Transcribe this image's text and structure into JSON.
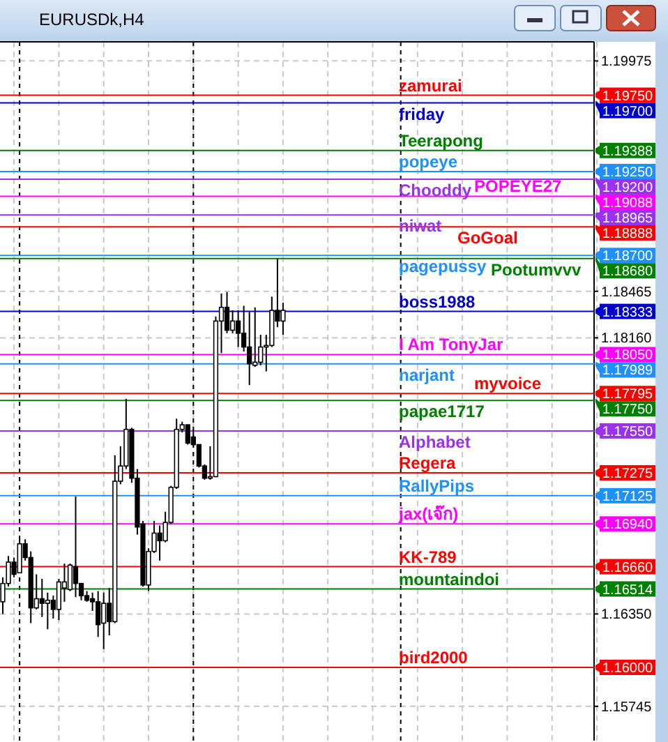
{
  "chart_data": {
    "type": "candlestick",
    "title": "EURUSDk,H4",
    "categories": [
      null,
      null,
      null,
      null,
      null,
      null,
      null,
      null,
      null,
      null,
      null,
      null,
      null,
      null,
      null,
      null,
      null,
      null,
      null,
      null,
      null,
      null,
      null,
      null,
      null,
      null,
      null,
      null,
      null,
      null,
      null,
      null,
      null,
      null,
      null,
      null,
      null,
      null,
      null,
      null,
      null,
      null,
      null,
      null,
      null,
      null,
      null,
      null,
      null,
      null,
      null,
      null,
      null,
      null,
      null,
      null,
      null,
      null,
      null,
      null,
      null,
      null,
      null,
      null,
      null,
      null,
      null,
      null,
      null,
      null,
      null,
      null,
      null,
      null,
      null,
      null,
      null,
      null,
      null,
      null,
      null,
      null,
      null,
      null,
      null,
      null,
      null,
      null,
      null,
      null,
      null,
      null,
      null,
      null,
      null,
      null,
      null,
      null,
      null,
      null,
      null,
      null,
      null,
      null,
      null,
      null
    ],
    "ohlc": [
      [
        1.1643,
        1.1659,
        1.1635,
        1.1655
      ],
      [
        1.1655,
        1.1673,
        1.1653,
        1.1669
      ],
      [
        1.1669,
        1.1672,
        1.1659,
        1.1661
      ],
      [
        1.1662,
        1.1684,
        1.1662,
        1.1681
      ],
      [
        1.1681,
        1.1684,
        1.167,
        1.1672
      ],
      [
        1.1672,
        1.1676,
        1.1629,
        1.1639
      ],
      [
        1.1639,
        1.1661,
        1.1638,
        1.1645
      ],
      [
        1.1645,
        1.1658,
        1.1633,
        1.1642
      ],
      [
        1.1642,
        1.1649,
        1.1625,
        1.1644
      ],
      [
        1.1644,
        1.1647,
        1.1632,
        1.1638
      ],
      [
        1.1638,
        1.1658,
        1.1631,
        1.1656
      ],
      [
        1.1652,
        1.1668,
        1.1643,
        1.1656
      ],
      [
        1.1651,
        1.1668,
        1.165,
        1.1667
      ],
      [
        1.1666,
        1.1712,
        1.1646,
        1.1655
      ],
      [
        1.1655,
        1.1655,
        1.1644,
        1.1647
      ],
      [
        1.1647,
        1.165,
        1.1643,
        1.1644
      ],
      [
        1.1645,
        1.1649,
        1.1637,
        1.1643
      ],
      [
        1.1643,
        1.165,
        1.162,
        1.1628
      ],
      [
        1.1629,
        1.1649,
        1.1612,
        1.1642
      ],
      [
        1.1642,
        1.1652,
        1.1621,
        1.163
      ],
      [
        1.163,
        1.1739,
        1.1629,
        1.1722
      ],
      [
        1.1722,
        1.1745,
        1.172,
        1.1732
      ],
      [
        1.1732,
        1.1776,
        1.173,
        1.1756
      ],
      [
        1.1756,
        1.1757,
        1.1721,
        1.1724
      ],
      [
        1.1724,
        1.173,
        1.1687,
        1.1692
      ],
      [
        1.1694,
        1.1696,
        1.1653,
        1.1654
      ],
      [
        1.1654,
        1.1678,
        1.165,
        1.1676
      ],
      [
        1.1676,
        1.1696,
        1.1675,
        1.1688
      ],
      [
        1.1688,
        1.1693,
        1.167,
        1.1683
      ],
      [
        1.1683,
        1.1702,
        1.1682,
        1.1695
      ],
      [
        1.1695,
        1.1719,
        1.1694,
        1.1718
      ],
      [
        1.1718,
        1.1763,
        1.1717,
        1.1756
      ],
      [
        1.1756,
        1.1761,
        1.1754,
        1.1759
      ],
      [
        1.1759,
        1.1759,
        1.1746,
        1.1747
      ],
      [
        1.1751,
        1.1756,
        1.1745,
        1.1746
      ],
      [
        1.1746,
        1.1746,
        1.1731,
        1.1732
      ],
      [
        1.1732,
        1.1733,
        1.1723,
        1.1724
      ],
      [
        1.1724,
        1.1745,
        1.1723,
        1.1725
      ],
      [
        1.1725,
        1.183,
        1.1725,
        1.1827
      ],
      [
        1.1827,
        1.1845,
        1.1806,
        1.1836
      ],
      [
        1.1836,
        1.1846,
        1.1819,
        1.1821
      ],
      [
        1.1821,
        1.1834,
        1.1819,
        1.1827
      ],
      [
        1.1827,
        1.1834,
        1.181,
        1.1819
      ],
      [
        1.1819,
        1.1837,
        1.1807,
        1.181
      ],
      [
        1.181,
        1.1833,
        1.1785,
        1.1799
      ],
      [
        1.1798,
        1.1836,
        1.1797,
        1.18
      ],
      [
        1.18,
        1.1818,
        1.1798,
        1.181
      ],
      [
        1.181,
        1.1818,
        1.1794,
        1.1811
      ],
      [
        1.1811,
        1.1843,
        1.181,
        1.1834
      ],
      [
        1.1834,
        1.1868,
        1.1823,
        1.1827
      ],
      [
        1.1827,
        1.1839,
        1.1818,
        1.1834
      ],
      null,
      null,
      null,
      null,
      null,
      null,
      null,
      null,
      null,
      null,
      null,
      null,
      null,
      null,
      null,
      null,
      null,
      null,
      null,
      null,
      null,
      null,
      null,
      null,
      null,
      null,
      null,
      null,
      null,
      null,
      null,
      null,
      null,
      null,
      null,
      null,
      null,
      null,
      null,
      null,
      null,
      null,
      null,
      null,
      null,
      null,
      null,
      null,
      null,
      null,
      null,
      null,
      null,
      null,
      null
    ],
    "ylim": [
      1.1552,
      1.201
    ],
    "yticks": [
      1.19975,
      1.18465,
      {
        "value": 1.1816,
        "label": "1.18160"
      },
      {
        "value": 1.1635,
        "label": "1.16350"
      },
      1.15745
    ],
    "grid": true,
    "ref_lines": [
      {
        "axis": "y",
        "value": 1.1975,
        "label": "1.19750",
        "color": "#ff0000"
      },
      {
        "axis": "y",
        "value": 1.197,
        "label": "1.19700",
        "color": "#0000cd"
      },
      {
        "axis": "y",
        "value": 1.19388,
        "label": "1.19388",
        "color": "#008000"
      },
      {
        "axis": "y",
        "value": 1.1925,
        "label": "1.19250",
        "color": "#1e90ff"
      },
      {
        "axis": "y",
        "value": 1.192,
        "label": "1.19200",
        "color": "#9932f0"
      },
      {
        "axis": "y",
        "value": 1.19088,
        "label": "1.19088",
        "color": "#ff00ff"
      },
      {
        "axis": "y",
        "value": 1.18965,
        "label": "1.18965",
        "color": "#9932f0"
      },
      {
        "axis": "y",
        "value": 1.18888,
        "label": "1.18888",
        "color": "#ff0000"
      },
      {
        "axis": "y",
        "value": 1.187,
        "label": "1.18700",
        "color": "#1e90ff"
      },
      {
        "axis": "y",
        "value": 1.1868,
        "label": "1.18680",
        "color": "#008000"
      },
      {
        "axis": "y",
        "value": 1.18333,
        "label": "1.18333",
        "color": "#0000cd"
      },
      {
        "axis": "y",
        "value": 1.1805,
        "label": "1.18050",
        "color": "#ff00ff"
      },
      {
        "axis": "y",
        "value": 1.17989,
        "label": "1.17989",
        "color": "#1e90ff"
      },
      {
        "axis": "y",
        "value": 1.17795,
        "label": "1.17795",
        "color": "#ff0000"
      },
      {
        "axis": "y",
        "value": 1.1775,
        "label": "1.17750",
        "color": "#008000"
      },
      {
        "axis": "y",
        "value": 1.1755,
        "label": "1.17550",
        "color": "#9932f0"
      },
      {
        "axis": "y",
        "value": 1.17275,
        "label": "1.17275",
        "color": "#ff0000"
      },
      {
        "axis": "y",
        "value": 1.17125,
        "label": "1.17125",
        "color": "#1e90ff"
      },
      {
        "axis": "y",
        "value": 1.1694,
        "label": "1.16940",
        "color": "#ff00ff"
      },
      {
        "axis": "y",
        "value": 1.1666,
        "label": "1.16660",
        "color": "#ff0000"
      },
      {
        "axis": "y",
        "value": 1.16514,
        "label": "1.16514",
        "color": "#008000"
      },
      {
        "axis": "y",
        "value": 1.16,
        "label": "1.16000",
        "color": "#ff0000"
      }
    ],
    "annotations": [
      {
        "text": "zamurai",
        "y": 1.1975
      },
      {
        "text": "friday",
        "y": 1.197
      },
      {
        "text": "Teerapong",
        "y": 1.19388
      },
      {
        "text": "popeye",
        "y": 1.1925
      },
      {
        "text": "Chooddy",
        "y": 1.192
      },
      {
        "text": "POPEYE27",
        "y": 1.19088
      },
      {
        "text": "niwat",
        "y": 1.18965
      },
      {
        "text": "GoGoal",
        "y": 1.18888
      },
      {
        "text": "pagepussy",
        "y": 1.187
      },
      {
        "text": "Pootumvvv",
        "y": 1.1868
      },
      {
        "text": "boss1988",
        "y": 1.18333
      },
      {
        "text": "I Am TonyJar",
        "y": 1.1805
      },
      {
        "text": "narjant",
        "y": 1.17989
      },
      {
        "text": "myvoice",
        "y": 1.17795
      },
      {
        "text": "papae1717",
        "y": 1.1775
      },
      {
        "text": "Alphabet",
        "y": 1.1755
      },
      {
        "text": "Regera",
        "y": 1.17275
      },
      {
        "text": "RallyPips",
        "y": 1.17125
      },
      {
        "text": "jax(เจ๊ก)",
        "y": 1.1694
      },
      {
        "text": "KK-789",
        "y": 1.1666
      },
      {
        "text": "mountaindoi",
        "y": 1.16514
      },
      {
        "text": "bird2000",
        "y": 1.16
      }
    ]
  }
}
